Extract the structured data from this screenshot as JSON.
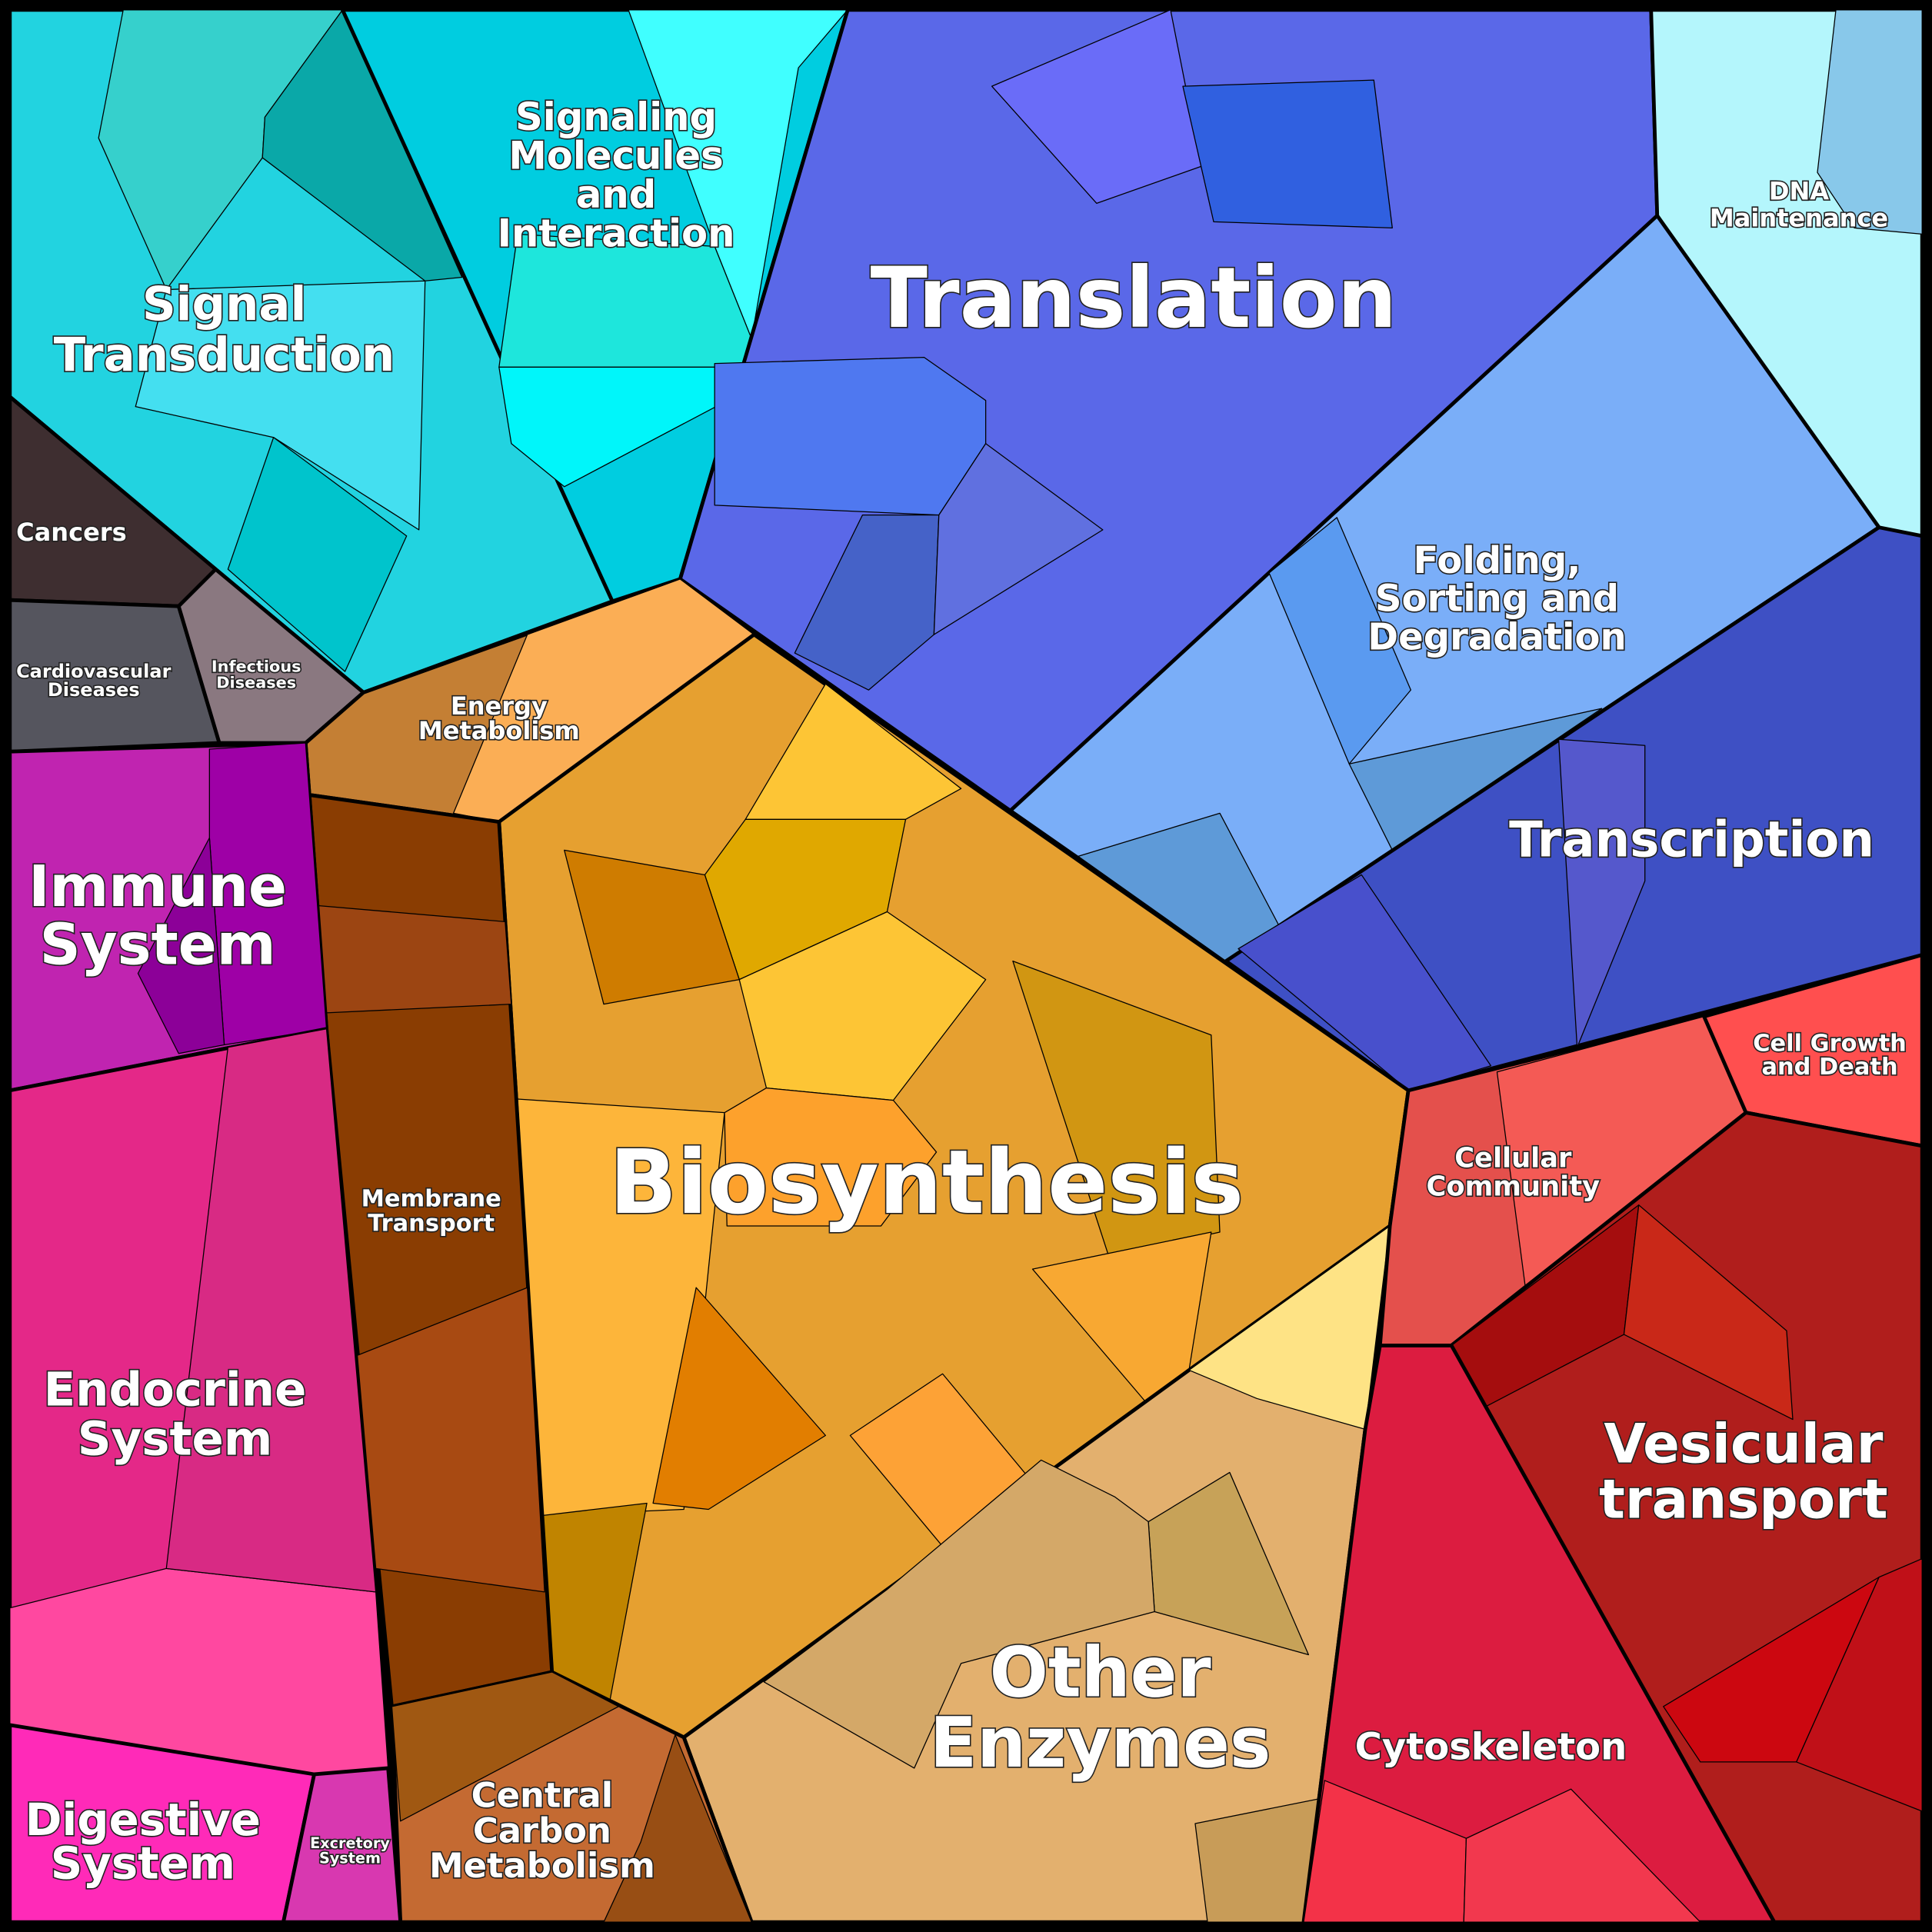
{
  "regions": [
    {
      "label": [
        "Signal",
        "Transduction"
      ]
    },
    {
      "label": [
        "Signaling",
        "Molecules",
        "and",
        "Interaction"
      ]
    },
    {
      "label": [
        "Translation"
      ]
    },
    {
      "label": [
        "DNA",
        "Maintenance"
      ]
    },
    {
      "label": [
        "Folding,",
        "Sorting and",
        "Degradation"
      ]
    },
    {
      "label": [
        "Transcription"
      ]
    },
    {
      "label": [
        "Cancers"
      ]
    },
    {
      "label": [
        "Cardiovascular",
        "Diseases"
      ]
    },
    {
      "label": [
        "Infectious",
        "Diseases"
      ]
    },
    {
      "label": [
        "Energy",
        "Metabolism"
      ]
    },
    {
      "label": [
        "Immune",
        "System"
      ]
    },
    {
      "label": [
        "Membrane",
        "Transport"
      ]
    },
    {
      "label": [
        "Biosynthesis"
      ]
    },
    {
      "label": [
        "Endocrine",
        "System"
      ]
    },
    {
      "label": [
        "Cellular",
        "Community"
      ]
    },
    {
      "label": [
        "Cell Growth",
        "and Death"
      ]
    },
    {
      "label": [
        "Vesicular",
        "transport"
      ]
    },
    {
      "label": [
        "Other",
        "Enzymes"
      ]
    },
    {
      "label": [
        "Cytoskeleton"
      ]
    },
    {
      "label": [
        "Digestive",
        "System"
      ]
    },
    {
      "label": [
        "Excretory",
        "System"
      ]
    },
    {
      "label": [
        "Central",
        "Carbon",
        "Metabolism"
      ]
    }
  ]
}
